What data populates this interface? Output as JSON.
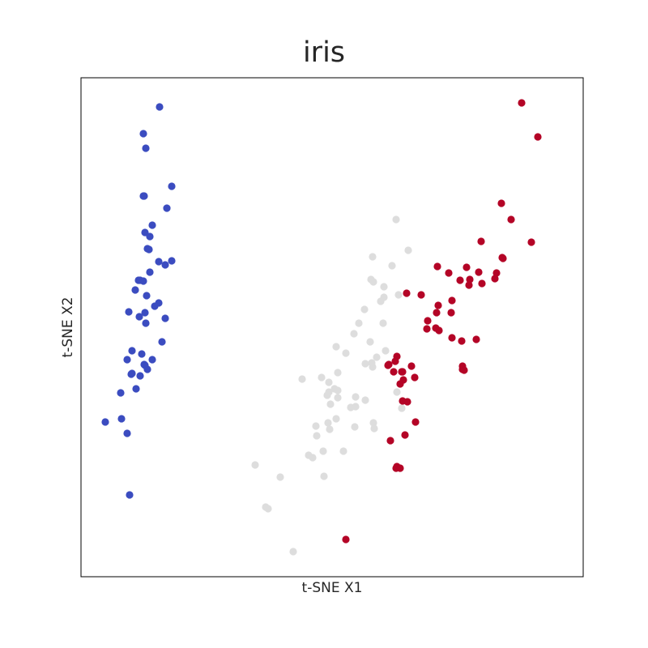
{
  "chart_data": {
    "type": "scatter",
    "title": "iris",
    "xlabel": "t-SNE X1",
    "ylabel": "t-SNE X2",
    "xlim": [
      0,
      620
    ],
    "ylim": [
      0,
      616
    ],
    "grid": false,
    "legend": "none",
    "colors": {
      "setosa": "#3b4cc0",
      "versicolor": "#dddddd",
      "virginica": "#b40426"
    },
    "series": [
      {
        "color_key": "setosa",
        "x": [
          97,
          77,
          80,
          112,
          77,
          78,
          106,
          88,
          79,
          85,
          82,
          84,
          96,
          104,
          112,
          85,
          71,
          77,
          73,
          67,
          81,
          96,
          91,
          79,
          72,
          59,
          104,
          80,
          100,
          63,
          75,
          88,
          57,
          79,
          82,
          62,
          78,
          63,
          73,
          68,
          49,
          30,
          50,
          57,
          60
        ],
        "y": [
          580,
          547,
          529,
          482,
          470,
          470,
          455,
          434,
          425,
          420,
          405,
          404,
          389,
          385,
          390,
          376,
          366,
          365,
          366,
          354,
          347,
          338,
          334,
          326,
          321,
          327,
          319,
          313,
          290,
          279,
          275,
          268,
          268,
          261,
          256,
          250,
          262,
          251,
          248,
          232,
          227,
          191,
          195,
          177,
          101
        ]
      },
      {
        "color_key": "versicolor",
        "x": [
          389,
          404,
          384,
          360,
          358,
          361,
          374,
          374,
          392,
          370,
          350,
          343,
          373,
          337,
          357,
          315,
          327,
          359,
          376,
          365,
          351,
          360,
          317,
          306,
          306,
          273,
          317,
          313,
          304,
          317,
          339,
          351,
          390,
          396,
          297,
          339,
          308,
          305,
          315,
          333,
          338,
          362,
          361,
          290,
          291,
          324,
          299,
          307,
          300,
          281,
          286,
          215,
          228,
          231,
          246,
          262
        ],
        "y": [
          441,
          403,
          384,
          395,
          367,
          364,
          358,
          345,
          348,
          340,
          330,
          313,
          313,
          300,
          290,
          284,
          276,
          264,
          279,
          271,
          263,
          259,
          252,
          240,
          228,
          244,
          230,
          232,
          224,
          221,
          222,
          218,
          228,
          208,
          246,
          210,
          213,
          190,
          195,
          209,
          185,
          183,
          190,
          186,
          174,
          155,
          155,
          182,
          124,
          150,
          147,
          138,
          86,
          84,
          123,
          31
        ]
      },
      {
        "color_key": "virginica",
        "x": [
          544,
          564,
          519,
          531,
          556,
          494,
          440,
          454,
          476,
          480,
          468,
          479,
          495,
          491,
          513,
          520,
          521,
          511,
          420,
          441,
          458,
          457,
          439,
          428,
          438,
          427,
          488,
          470,
          471,
          442,
          458,
          471,
          473,
          402,
          390,
          380,
          379,
          388,
          386,
          396,
          397,
          398,
          408,
          412,
          403,
          397,
          382,
          413,
          400,
          389,
          390,
          394,
          327,
          394
        ],
        "y": [
          585,
          543,
          461,
          441,
          413,
          414,
          383,
          375,
          382,
          367,
          366,
          360,
          362,
          376,
          375,
          394,
          393,
          368,
          348,
          335,
          341,
          326,
          326,
          316,
          307,
          306,
          293,
          291,
          260,
          304,
          295,
          256,
          255,
          350,
          272,
          262,
          261,
          266,
          253,
          253,
          253,
          243,
          260,
          246,
          216,
          217,
          168,
          191,
          175,
          134,
          136,
          134,
          46,
          238
        ]
      }
    ]
  }
}
